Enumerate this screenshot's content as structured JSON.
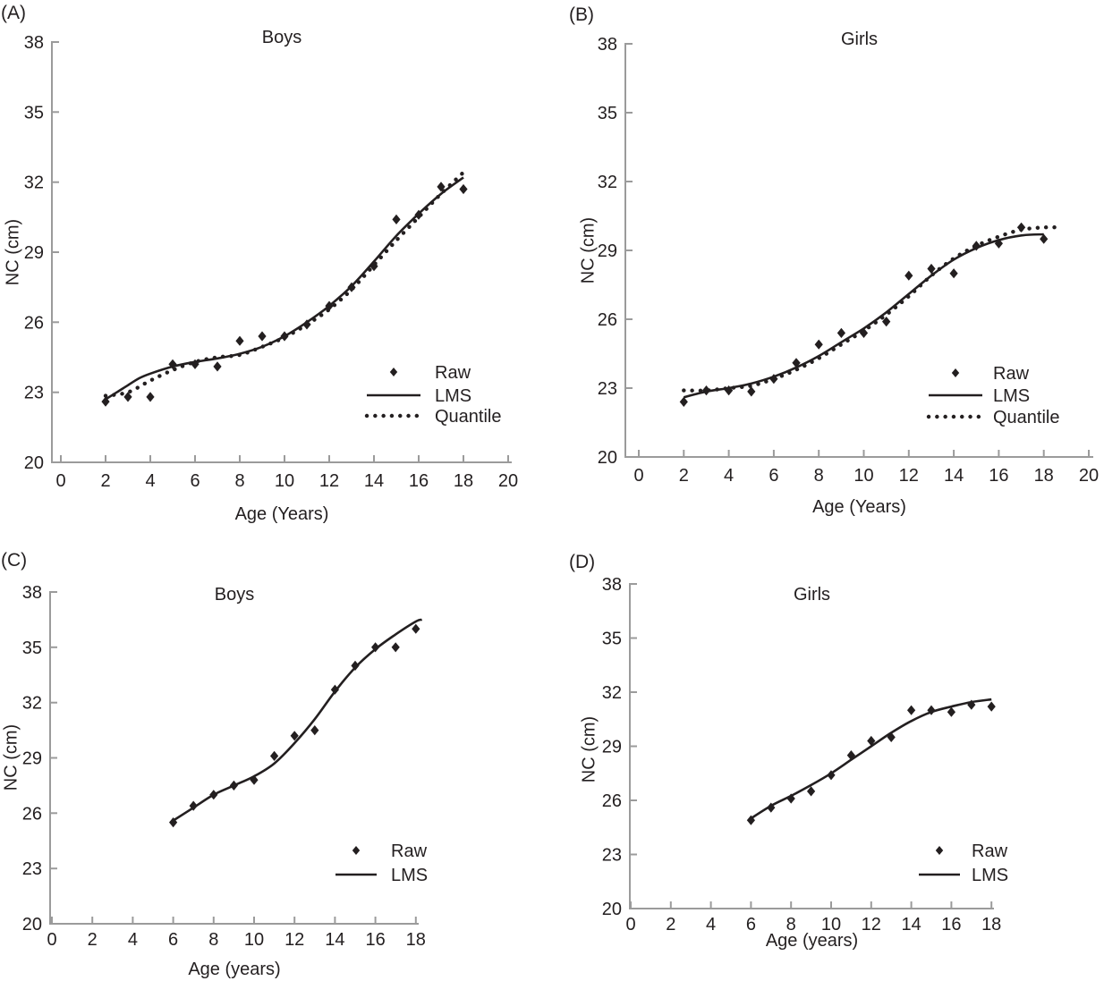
{
  "figure": {
    "background_color": "#ffffff",
    "axis_color": "#9b9b9b",
    "ink_color": "#231f20"
  },
  "chart_data": [
    {
      "panel_label": "(A)",
      "type": "line",
      "title": "Boys",
      "xlabel": "Age (Years)",
      "ylabel": "NC (cm)",
      "xlim": [
        0,
        20
      ],
      "ylim": [
        20,
        38
      ],
      "xticks": [
        0,
        2,
        4,
        6,
        8,
        10,
        12,
        14,
        16,
        18,
        20
      ],
      "yticks": [
        20,
        23,
        26,
        29,
        32,
        35,
        38
      ],
      "grid": false,
      "legend_position": "lower right",
      "legend": [
        {
          "label": "Raw",
          "marker": "diamond"
        },
        {
          "label": "LMS",
          "marker": "solid-line"
        },
        {
          "label": "Quantile",
          "marker": "dotted-line"
        }
      ],
      "series": [
        {
          "name": "Raw",
          "style": "points",
          "x": [
            2,
            3,
            4,
            5,
            6,
            7,
            8,
            9,
            10,
            11,
            12,
            13,
            14,
            15,
            16,
            17,
            18
          ],
          "y": [
            22.6,
            22.8,
            22.8,
            24.2,
            24.2,
            24.1,
            25.2,
            25.4,
            25.4,
            25.9,
            26.7,
            27.5,
            28.4,
            30.4,
            30.6,
            31.8,
            31.7
          ]
        },
        {
          "name": "LMS",
          "style": "solid",
          "x": [
            2,
            2.5,
            3,
            3.5,
            4,
            5,
            6,
            7,
            8,
            9,
            10,
            11,
            12,
            13,
            14,
            15,
            16,
            17,
            18
          ],
          "y": [
            22.7,
            23.0,
            23.3,
            23.6,
            23.8,
            24.1,
            24.3,
            24.45,
            24.65,
            24.95,
            25.4,
            26.0,
            26.7,
            27.55,
            28.6,
            29.7,
            30.65,
            31.5,
            32.2
          ]
        },
        {
          "name": "Quantile",
          "style": "dotted",
          "x": [
            2,
            3,
            4,
            5,
            6,
            7,
            8,
            9,
            10,
            11,
            12,
            13,
            14,
            15,
            16,
            17,
            18.2
          ],
          "y": [
            22.85,
            23.0,
            23.5,
            23.95,
            24.3,
            24.5,
            24.6,
            24.95,
            25.35,
            25.9,
            26.55,
            27.4,
            28.45,
            29.5,
            30.5,
            31.5,
            32.6
          ]
        }
      ]
    },
    {
      "panel_label": "(B)",
      "type": "line",
      "title": "Girls",
      "xlabel": "Age (Years)",
      "ylabel": "NC (cm)",
      "xlim": [
        0,
        20
      ],
      "ylim": [
        20,
        38
      ],
      "xticks": [
        0,
        2,
        4,
        6,
        8,
        10,
        12,
        14,
        16,
        18,
        20
      ],
      "yticks": [
        20,
        23,
        26,
        29,
        32,
        35,
        38
      ],
      "grid": false,
      "legend_position": "lower right",
      "legend": [
        {
          "label": "Raw",
          "marker": "diamond"
        },
        {
          "label": "LMS",
          "marker": "solid-line"
        },
        {
          "label": "Quantile",
          "marker": "dotted-line"
        }
      ],
      "series": [
        {
          "name": "Raw",
          "style": "points",
          "x": [
            2,
            3,
            4,
            5,
            6,
            7,
            8,
            9,
            10,
            11,
            12,
            13,
            14,
            15,
            16,
            17,
            18
          ],
          "y": [
            22.4,
            22.9,
            22.9,
            22.85,
            23.4,
            24.1,
            24.9,
            25.4,
            25.4,
            25.9,
            27.9,
            28.2,
            28.0,
            29.2,
            29.3,
            30.0,
            29.5
          ]
        },
        {
          "name": "LMS",
          "style": "solid",
          "x": [
            2,
            3,
            4,
            5,
            6,
            7,
            8,
            9,
            10,
            11,
            12,
            13,
            14,
            15,
            16,
            17,
            18
          ],
          "y": [
            22.6,
            22.85,
            23.0,
            23.2,
            23.5,
            23.9,
            24.4,
            25.0,
            25.6,
            26.3,
            27.1,
            27.9,
            28.6,
            29.1,
            29.45,
            29.65,
            29.7
          ]
        },
        {
          "name": "Quantile",
          "style": "dotted",
          "x": [
            2,
            3,
            4,
            5,
            6,
            7,
            8,
            9,
            10,
            11,
            12,
            13,
            14,
            15,
            16,
            17,
            18,
            18.7
          ],
          "y": [
            22.9,
            22.9,
            23.0,
            23.1,
            23.4,
            23.8,
            24.3,
            24.9,
            25.5,
            26.2,
            27.0,
            27.9,
            28.65,
            29.2,
            29.6,
            29.9,
            30.0,
            30.0
          ]
        }
      ]
    },
    {
      "panel_label": "(C)",
      "type": "line",
      "title": "Boys",
      "xlabel": "Age (years)",
      "ylabel": "NC (cm)",
      "xlim": [
        0,
        18
      ],
      "ylim": [
        20,
        38
      ],
      "xticks": [
        0,
        2,
        4,
        6,
        8,
        10,
        12,
        14,
        16,
        18
      ],
      "yticks": [
        20,
        23,
        26,
        29,
        32,
        35,
        38
      ],
      "grid": false,
      "legend_position": "lower right",
      "legend": [
        {
          "label": "Raw",
          "marker": "diamond"
        },
        {
          "label": "LMS",
          "marker": "solid-line"
        }
      ],
      "series": [
        {
          "name": "Raw",
          "style": "points",
          "x": [
            6,
            7,
            8,
            9,
            10,
            11,
            12,
            13,
            14,
            15,
            16,
            17,
            18
          ],
          "y": [
            25.5,
            26.4,
            27.0,
            27.5,
            27.8,
            29.1,
            30.2,
            30.5,
            32.7,
            34.0,
            35.0,
            35.0,
            36.0
          ]
        },
        {
          "name": "LMS",
          "style": "solid",
          "x": [
            6,
            7,
            8,
            9,
            10,
            11,
            12,
            13,
            14,
            15,
            16,
            17,
            18,
            18.3
          ],
          "y": [
            25.6,
            26.3,
            27.0,
            27.5,
            28.0,
            28.7,
            29.8,
            31.1,
            32.6,
            33.9,
            34.9,
            35.7,
            36.4,
            36.5
          ]
        }
      ]
    },
    {
      "panel_label": "(D)",
      "type": "line",
      "title": "Girls",
      "xlabel": "Age (years)",
      "ylabel": "NC (cm)",
      "xlim": [
        0,
        18
      ],
      "ylim": [
        20,
        38
      ],
      "xticks": [
        0,
        2,
        4,
        6,
        8,
        10,
        12,
        14,
        16,
        18
      ],
      "yticks": [
        20,
        23,
        26,
        29,
        32,
        35,
        38
      ],
      "grid": false,
      "legend_position": "lower right",
      "legend": [
        {
          "label": "Raw",
          "marker": "diamond"
        },
        {
          "label": "LMS",
          "marker": "solid-line"
        }
      ],
      "series": [
        {
          "name": "Raw",
          "style": "points",
          "x": [
            6,
            7,
            8,
            9,
            10,
            11,
            12,
            13,
            14,
            15,
            16,
            17,
            18
          ],
          "y": [
            24.9,
            25.6,
            26.1,
            26.5,
            27.4,
            28.5,
            29.3,
            29.5,
            31.0,
            31.0,
            30.9,
            31.3,
            31.2
          ]
        },
        {
          "name": "LMS",
          "style": "solid",
          "x": [
            6,
            7,
            8,
            9,
            10,
            11,
            12,
            13,
            14,
            15,
            16,
            17,
            18
          ],
          "y": [
            25.0,
            25.7,
            26.25,
            26.85,
            27.5,
            28.25,
            29.0,
            29.75,
            30.4,
            30.9,
            31.2,
            31.45,
            31.6
          ]
        }
      ]
    }
  ]
}
